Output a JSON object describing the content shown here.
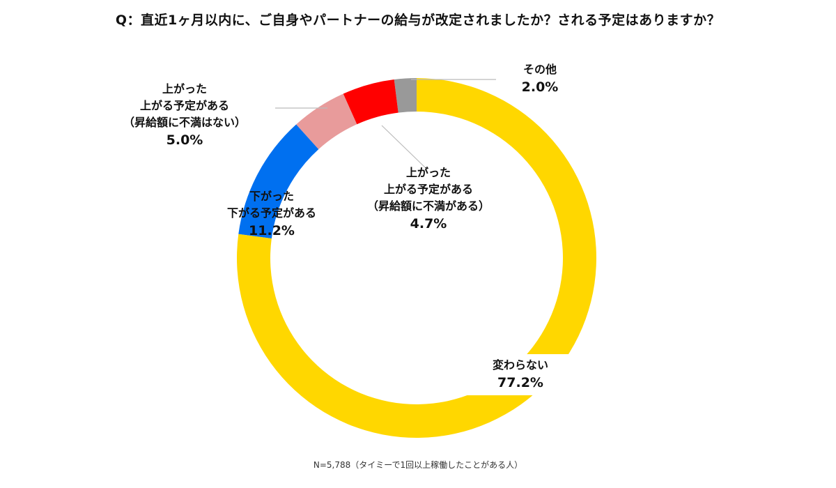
{
  "title": "Q：直近1ヶ月以内に、ご自身やパートナーの給与が改定されましたか？される予定はありますか？",
  "footnote": "N=5,788（タイミーで1回以上稼働したことがある人）",
  "chart_data": {
    "type": "pie",
    "donut": true,
    "title": "Q：直近1ヶ月以内に、ご自身やパートナーの給与が改定されましたか？される予定はありますか？",
    "slices": [
      {
        "key": "no_change",
        "lines": [
          "変わらない"
        ],
        "value": 77.2,
        "label": "77.2%",
        "color": "#FFD700"
      },
      {
        "key": "down",
        "lines": [
          "下がった",
          "下がる予定がある"
        ],
        "value": 11.2,
        "label": "11.2%",
        "color": "#0070F0"
      },
      {
        "key": "up_ok",
        "lines": [
          "上がった",
          "上がる予定がある",
          "（昇給額に不満はない）"
        ],
        "value": 5.0,
        "label": "5.0%",
        "color": "#E89B9B"
      },
      {
        "key": "up_unhappy",
        "lines": [
          "上がった",
          "上がる予定がある",
          "（昇給額に不満がある）"
        ],
        "value": 4.7,
        "label": "4.7%",
        "color": "#FF0000"
      },
      {
        "key": "other",
        "lines": [
          "その他"
        ],
        "value": 2.0,
        "label": "2.0%",
        "color": "#999999"
      }
    ],
    "order_counterclockwise_from_top": [
      "other",
      "up_unhappy",
      "up_ok",
      "down",
      "no_change"
    ]
  }
}
